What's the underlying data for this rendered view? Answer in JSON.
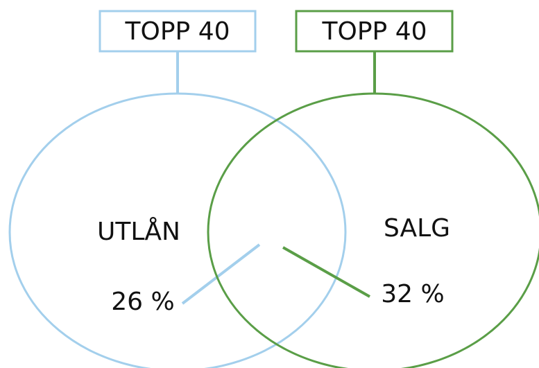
{
  "sets": [
    {
      "box_label": "TOPP 40",
      "label": "UTLÅN",
      "share": "26 %"
    },
    {
      "box_label": "TOPP 40",
      "label": "SALG",
      "share": "32 %"
    }
  ]
}
